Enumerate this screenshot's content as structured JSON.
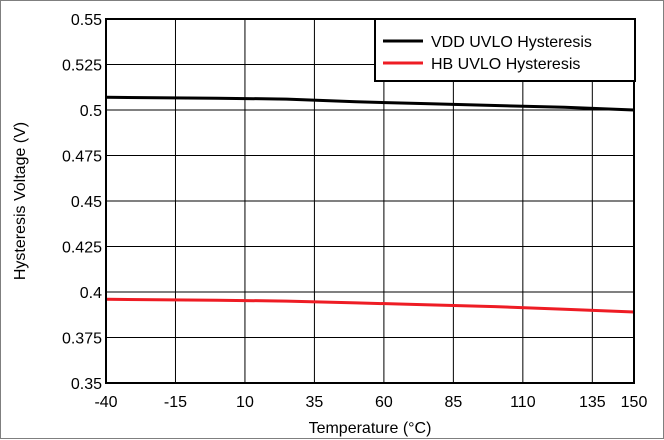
{
  "chart_data": {
    "type": "line",
    "xlabel": "Temperature (°C)",
    "ylabel": "Hysteresis Voltage (V)",
    "xlim": [
      -40,
      150
    ],
    "ylim": [
      0.35,
      0.55
    ],
    "x_ticks": [
      -40,
      -15,
      10,
      35,
      60,
      85,
      110,
      135,
      150
    ],
    "x_tick_labels": [
      "-40",
      "-15",
      "10",
      "35",
      "60",
      "85",
      "110",
      "135",
      "150"
    ],
    "y_ticks": [
      0.35,
      0.375,
      0.4,
      0.425,
      0.45,
      0.475,
      0.5,
      0.525,
      0.55
    ],
    "y_tick_labels": [
      "0.35",
      "0.375",
      "0.4",
      "0.425",
      "0.45",
      "0.475",
      "0.5",
      "0.525",
      "0.55"
    ],
    "grid": true,
    "legend_position": "top-right",
    "series": [
      {
        "name": "VDD UVLO Hysteresis",
        "color": "#000000",
        "x": [
          -40,
          0,
          25,
          50,
          75,
          100,
          125,
          150
        ],
        "y": [
          0.507,
          0.5065,
          0.506,
          0.5045,
          0.5035,
          0.5025,
          0.5015,
          0.5
        ]
      },
      {
        "name": "HB UVLO Hysteresis",
        "color": "#ee1c24",
        "x": [
          -40,
          0,
          25,
          50,
          75,
          100,
          125,
          150
        ],
        "y": [
          0.396,
          0.3955,
          0.395,
          0.394,
          0.393,
          0.392,
          0.3905,
          0.389
        ]
      }
    ]
  }
}
